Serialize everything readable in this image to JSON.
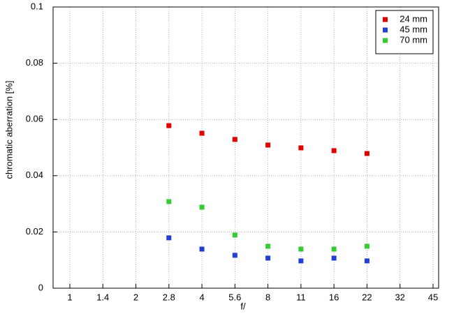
{
  "chart_data": {
    "type": "scatter",
    "xlabel": "f/",
    "ylabel": "chromatic  aberration [%]",
    "categories": [
      "1",
      "1.4",
      "2",
      "2.8",
      "4",
      "5.6",
      "8",
      "11",
      "16",
      "22",
      "32",
      "45"
    ],
    "series": [
      {
        "name": "24 mm",
        "color": "#e00000",
        "values": [
          null,
          null,
          null,
          0.0578,
          0.0551,
          0.0529,
          0.0509,
          0.0499,
          0.0489,
          0.0479,
          null,
          null
        ]
      },
      {
        "name": "45 mm",
        "color": "#1f3fd6",
        "values": [
          null,
          null,
          null,
          0.0179,
          0.0139,
          0.0117,
          0.0107,
          0.0097,
          0.0107,
          0.0097,
          null,
          null
        ]
      },
      {
        "name": "70 mm",
        "color": "#33cc33",
        "values": [
          null,
          null,
          null,
          0.0308,
          0.0288,
          0.0189,
          0.0149,
          0.0139,
          0.0139,
          0.0149,
          null,
          null
        ]
      }
    ],
    "ylim": [
      0,
      0.1
    ],
    "yticks": [
      0,
      0.02,
      0.04,
      0.06,
      0.08,
      0.1
    ],
    "grid": true,
    "legend": "upper-right"
  }
}
